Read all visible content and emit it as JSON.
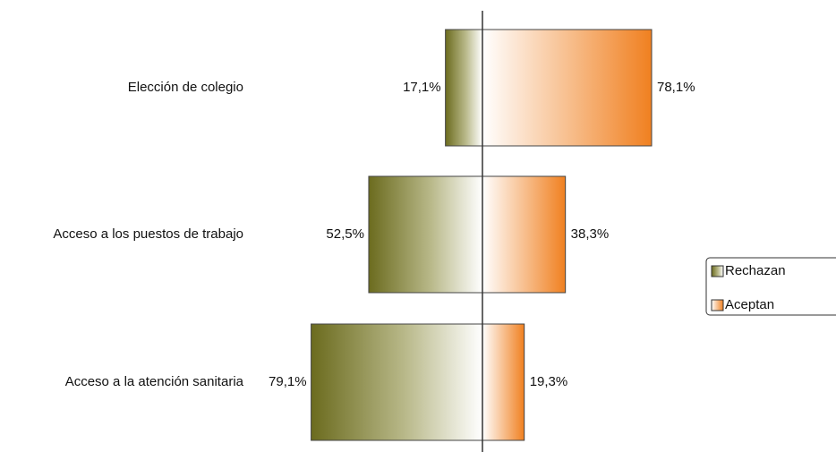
{
  "chart_data": {
    "type": "diverging-bar",
    "categories": [
      "Elección de colegio",
      "Acceso a los puestos de trabajo",
      "Acceso a la atención sanitaria"
    ],
    "series": [
      {
        "name": "Rechazan",
        "color": "#6b6b1e",
        "values": [
          17.1,
          52.5,
          79.1
        ],
        "value_labels": [
          "17,1%",
          "52,5%",
          "79,1%"
        ]
      },
      {
        "name": "Aceptan",
        "color": "#f08020",
        "values": [
          78.1,
          38.3,
          19.3
        ],
        "value_labels": [
          "78,1%",
          "38,3%",
          "19,3%"
        ]
      }
    ]
  }
}
